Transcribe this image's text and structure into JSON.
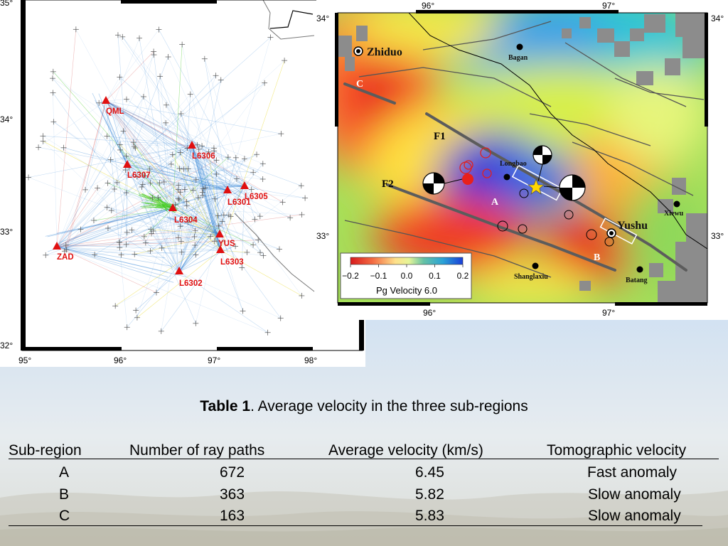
{
  "left_map": {
    "lat_labels": [
      "35°",
      "34°",
      "33°",
      "32°"
    ],
    "lon_labels": [
      "95°",
      "96°",
      "97°",
      "98°"
    ],
    "stations": [
      {
        "name": "QML"
      },
      {
        "name": "L6307"
      },
      {
        "name": "L6306"
      },
      {
        "name": "L6305"
      },
      {
        "name": "L6301"
      },
      {
        "name": "L6304"
      },
      {
        "name": "YUS"
      },
      {
        "name": "L6303"
      },
      {
        "name": "ZAD"
      },
      {
        "name": "L6302"
      }
    ],
    "colors": {
      "station": "#e01010",
      "ray_blue": "#2a7fd4",
      "ray_red": "#d04040",
      "ray_green": "#44cc22",
      "ray_yellow": "#e8d820",
      "event": "#555555"
    }
  },
  "right_map": {
    "lon_labels_top": [
      "96°",
      "97°"
    ],
    "lon_labels_bottom": [
      "96°",
      "97°"
    ],
    "lat_labels_left": [
      "34°",
      "33°"
    ],
    "lat_labels_right": [
      "34°",
      "33°"
    ],
    "towns": [
      "Zhiduo",
      "Bagan",
      "Longbao",
      "Xiewu",
      "Yushu",
      "Shanglaxiu",
      "Batang"
    ],
    "faults": [
      "F1",
      "F2"
    ],
    "regions": [
      "A",
      "B",
      "C"
    ],
    "colorbar": {
      "title": "Pg Velocity 6.0",
      "ticks": [
        "−0.2",
        "−0.1",
        "0.0",
        "0.1",
        "0.2"
      ],
      "colors": [
        "#d7191c",
        "#f46d43",
        "#fee08b",
        "#e6f598",
        "#66c2a5",
        "#2ba3d6",
        "#1a3fd8"
      ]
    }
  },
  "table": {
    "title_bold": "Table 1",
    "title_rest": ". Average velocity in the three sub-regions",
    "headers": [
      "Sub-region",
      "Number of ray paths",
      "Average velocity (km/s)",
      "Tomographic velocity"
    ],
    "rows": [
      {
        "region": "A",
        "rays": "672",
        "velocity": "6.45",
        "tomo": "Fast anomaly"
      },
      {
        "region": "B",
        "rays": "363",
        "velocity": "5.82",
        "tomo": "Slow anomaly"
      },
      {
        "region": "C",
        "rays": "163",
        "velocity": "5.83",
        "tomo": "Slow anomaly"
      }
    ]
  }
}
